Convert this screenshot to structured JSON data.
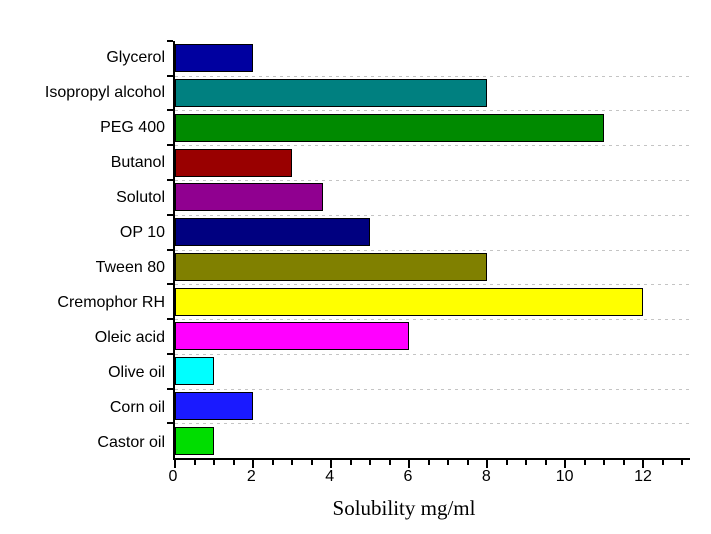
{
  "chart_data": {
    "type": "bar",
    "orientation": "horizontal",
    "title": "",
    "xlabel": "Solubility mg/ml",
    "ylabel": "",
    "categories": [
      "Glycerol",
      "Isopropyl alcohol",
      "PEG 400",
      "Butanol",
      "Solutol",
      "OP 10",
      "Tween 80",
      "Cremophor RH",
      "Oleic acid",
      "Olive oil",
      "Corn oil",
      "Castor oil"
    ],
    "values": [
      2,
      8,
      11,
      3,
      3.8,
      5,
      8,
      12,
      6,
      1,
      2,
      1
    ],
    "bar_colors": [
      "#0000A0",
      "#008080",
      "#008A00",
      "#990000",
      "#900090",
      "#000080",
      "#808000",
      "#FFFF00",
      "#FF00FF",
      "#00FFFF",
      "#1A1AFF",
      "#00DD00"
    ],
    "xlim": [
      0,
      13.2
    ],
    "x_major_ticks": [
      0,
      2,
      4,
      6,
      8,
      10,
      12
    ],
    "x_tick_labels": [
      "0",
      "2",
      "4",
      "6",
      "8",
      "10",
      "12"
    ],
    "x_minor_tick_step": 0.5,
    "legend": "none",
    "grid": "horizontal dashed lines at category boundaries",
    "styles": {
      "bar_border_color": "#000000",
      "axis_color": "#000000",
      "gridline_color": "#c4c4c4",
      "background": "#ffffff",
      "text_color": "#000000"
    }
  }
}
